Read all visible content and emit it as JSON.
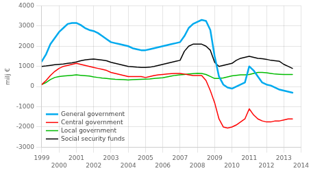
{
  "chart_data": {
    "type": "line",
    "ylabel": "milj €",
    "x": [
      1999.0,
      1999.25,
      1999.5,
      1999.75,
      2000.0,
      2000.25,
      2000.5,
      2000.75,
      2001.0,
      2001.25,
      2001.5,
      2001.75,
      2002.0,
      2002.25,
      2002.5,
      2002.75,
      2003.0,
      2003.25,
      2003.5,
      2003.75,
      2004.0,
      2004.25,
      2004.5,
      2004.75,
      2005.0,
      2005.25,
      2005.5,
      2005.75,
      2006.0,
      2006.25,
      2006.5,
      2006.75,
      2007.0,
      2007.25,
      2007.5,
      2007.75,
      2008.0,
      2008.25,
      2008.5,
      2008.75,
      2009.0,
      2009.25,
      2009.5,
      2009.75,
      2010.0,
      2010.25,
      2010.5,
      2010.75,
      2011.0,
      2011.25,
      2011.5,
      2011.75,
      2012.0,
      2012.25,
      2012.5,
      2012.75,
      2013.0,
      2013.25,
      2013.5
    ],
    "series": [
      {
        "name": "General government",
        "color": "#00aaee",
        "values": [
          1250,
          1600,
          2100,
          2400,
          2700,
          2900,
          3100,
          3150,
          3150,
          3050,
          2900,
          2800,
          2750,
          2650,
          2500,
          2350,
          2200,
          2150,
          2100,
          2050,
          2000,
          1900,
          1850,
          1800,
          1800,
          1850,
          1900,
          1950,
          2000,
          2050,
          2100,
          2150,
          2200,
          2500,
          2900,
          3100,
          3200,
          3300,
          3250,
          2800,
          1500,
          500,
          100,
          -50,
          -100,
          0,
          100,
          200,
          1000,
          800,
          500,
          200,
          100,
          50,
          -50,
          -150,
          -200,
          -250,
          -300
        ]
      },
      {
        "name": "Central government",
        "color": "#ff0000",
        "values": [
          100,
          300,
          550,
          750,
          900,
          1000,
          1050,
          1100,
          1150,
          1100,
          1050,
          1000,
          950,
          900,
          850,
          800,
          700,
          650,
          600,
          550,
          500,
          500,
          500,
          500,
          450,
          500,
          550,
          580,
          600,
          620,
          640,
          650,
          650,
          620,
          580,
          550,
          550,
          550,
          300,
          -200,
          -800,
          -1600,
          -2000,
          -2050,
          -2000,
          -1900,
          -1750,
          -1600,
          -1100,
          -1400,
          -1600,
          -1700,
          -1750,
          -1750,
          -1700,
          -1700,
          -1650,
          -1600,
          -1600
        ]
      },
      {
        "name": "Local government",
        "color": "#00bb00",
        "values": [
          100,
          200,
          350,
          450,
          500,
          520,
          540,
          560,
          580,
          560,
          540,
          520,
          480,
          450,
          420,
          400,
          380,
          360,
          350,
          340,
          330,
          340,
          350,
          360,
          370,
          380,
          400,
          420,
          440,
          480,
          520,
          560,
          580,
          600,
          620,
          640,
          660,
          650,
          600,
          500,
          400,
          400,
          430,
          480,
          530,
          560,
          580,
          580,
          600,
          650,
          700,
          700,
          680,
          650,
          620,
          610,
          600,
          600,
          600
        ]
      },
      {
        "name": "Social security funds",
        "color": "#000000",
        "values": [
          1000,
          1020,
          1050,
          1080,
          1100,
          1120,
          1150,
          1180,
          1220,
          1280,
          1320,
          1350,
          1360,
          1340,
          1310,
          1280,
          1200,
          1150,
          1100,
          1050,
          1000,
          980,
          960,
          950,
          950,
          960,
          1000,
          1050,
          1100,
          1150,
          1200,
          1250,
          1300,
          1750,
          2000,
          2100,
          2100,
          2100,
          2000,
          1800,
          1200,
          1000,
          1050,
          1100,
          1150,
          1300,
          1400,
          1450,
          1500,
          1450,
          1400,
          1380,
          1350,
          1300,
          1280,
          1250,
          1100,
          1000,
          900
        ]
      }
    ],
    "xlim": [
      1999.0,
      2014.0
    ],
    "xticks": [
      1999,
      2000,
      2001,
      2002,
      2003,
      2004,
      2005,
      2006,
      2007,
      2008,
      2009,
      2010,
      2011,
      2012,
      2013,
      2014
    ],
    "ylim": [
      -3000,
      4000
    ],
    "yticks": [
      -3000,
      -2000,
      -1000,
      0,
      1000,
      2000,
      3000,
      4000
    ],
    "grid": true,
    "legend": "lower left"
  }
}
